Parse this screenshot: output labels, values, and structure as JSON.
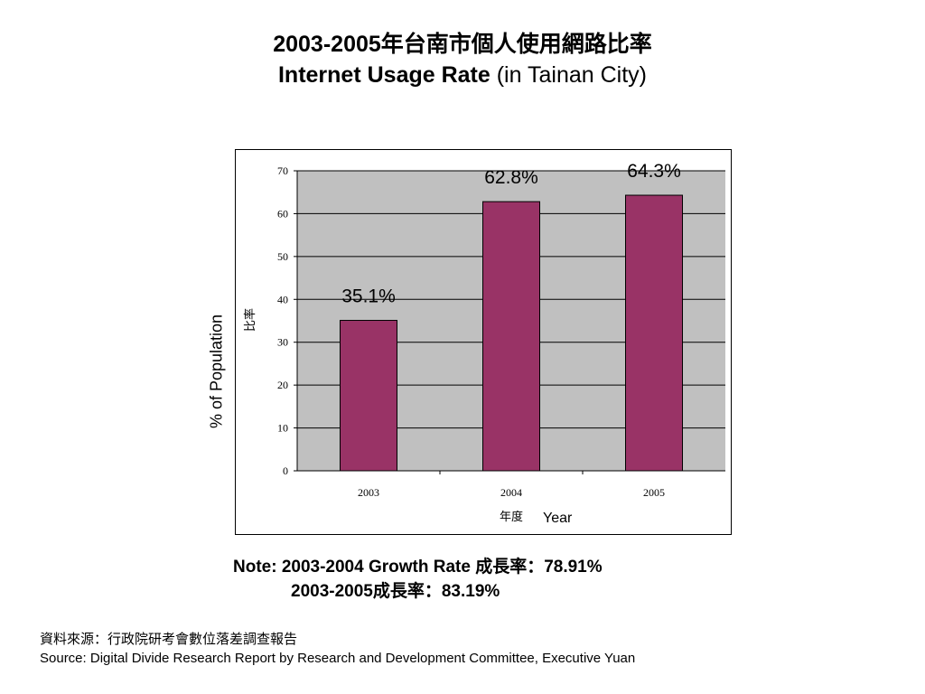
{
  "title": {
    "line1": "2003-2005年台南市個人使用網路比率",
    "line2_bold": "Internet Usage Rate",
    "line2_rest": " (in Tainan City)"
  },
  "y_outer_label": "% of Population",
  "note": {
    "line1": "Note: 2003-2004 Growth Rate  成長率：78.91%",
    "line2": "2003-2005成長率：83.19%"
  },
  "source": {
    "line1": "資料來源：行政院研考會數位落差調查報告",
    "line2": "Source: Digital Divide Research Report by Research and Development Committee, Executive Yuan"
  },
  "chart_data": {
    "type": "bar",
    "categories": [
      "2003",
      "2004",
      "2005"
    ],
    "values": [
      35.1,
      62.8,
      64.3
    ],
    "data_labels": [
      "35.1%",
      "62.8%",
      "64.3%"
    ],
    "ylabel": "比率",
    "xlabel": "年度",
    "xlabel_en": "Year",
    "ylim": [
      0,
      70
    ],
    "yticks": [
      0,
      10,
      20,
      30,
      40,
      50,
      60,
      70
    ],
    "grid": true,
    "bar_color": "#993366",
    "plot_bg": "#c0c0c0"
  }
}
